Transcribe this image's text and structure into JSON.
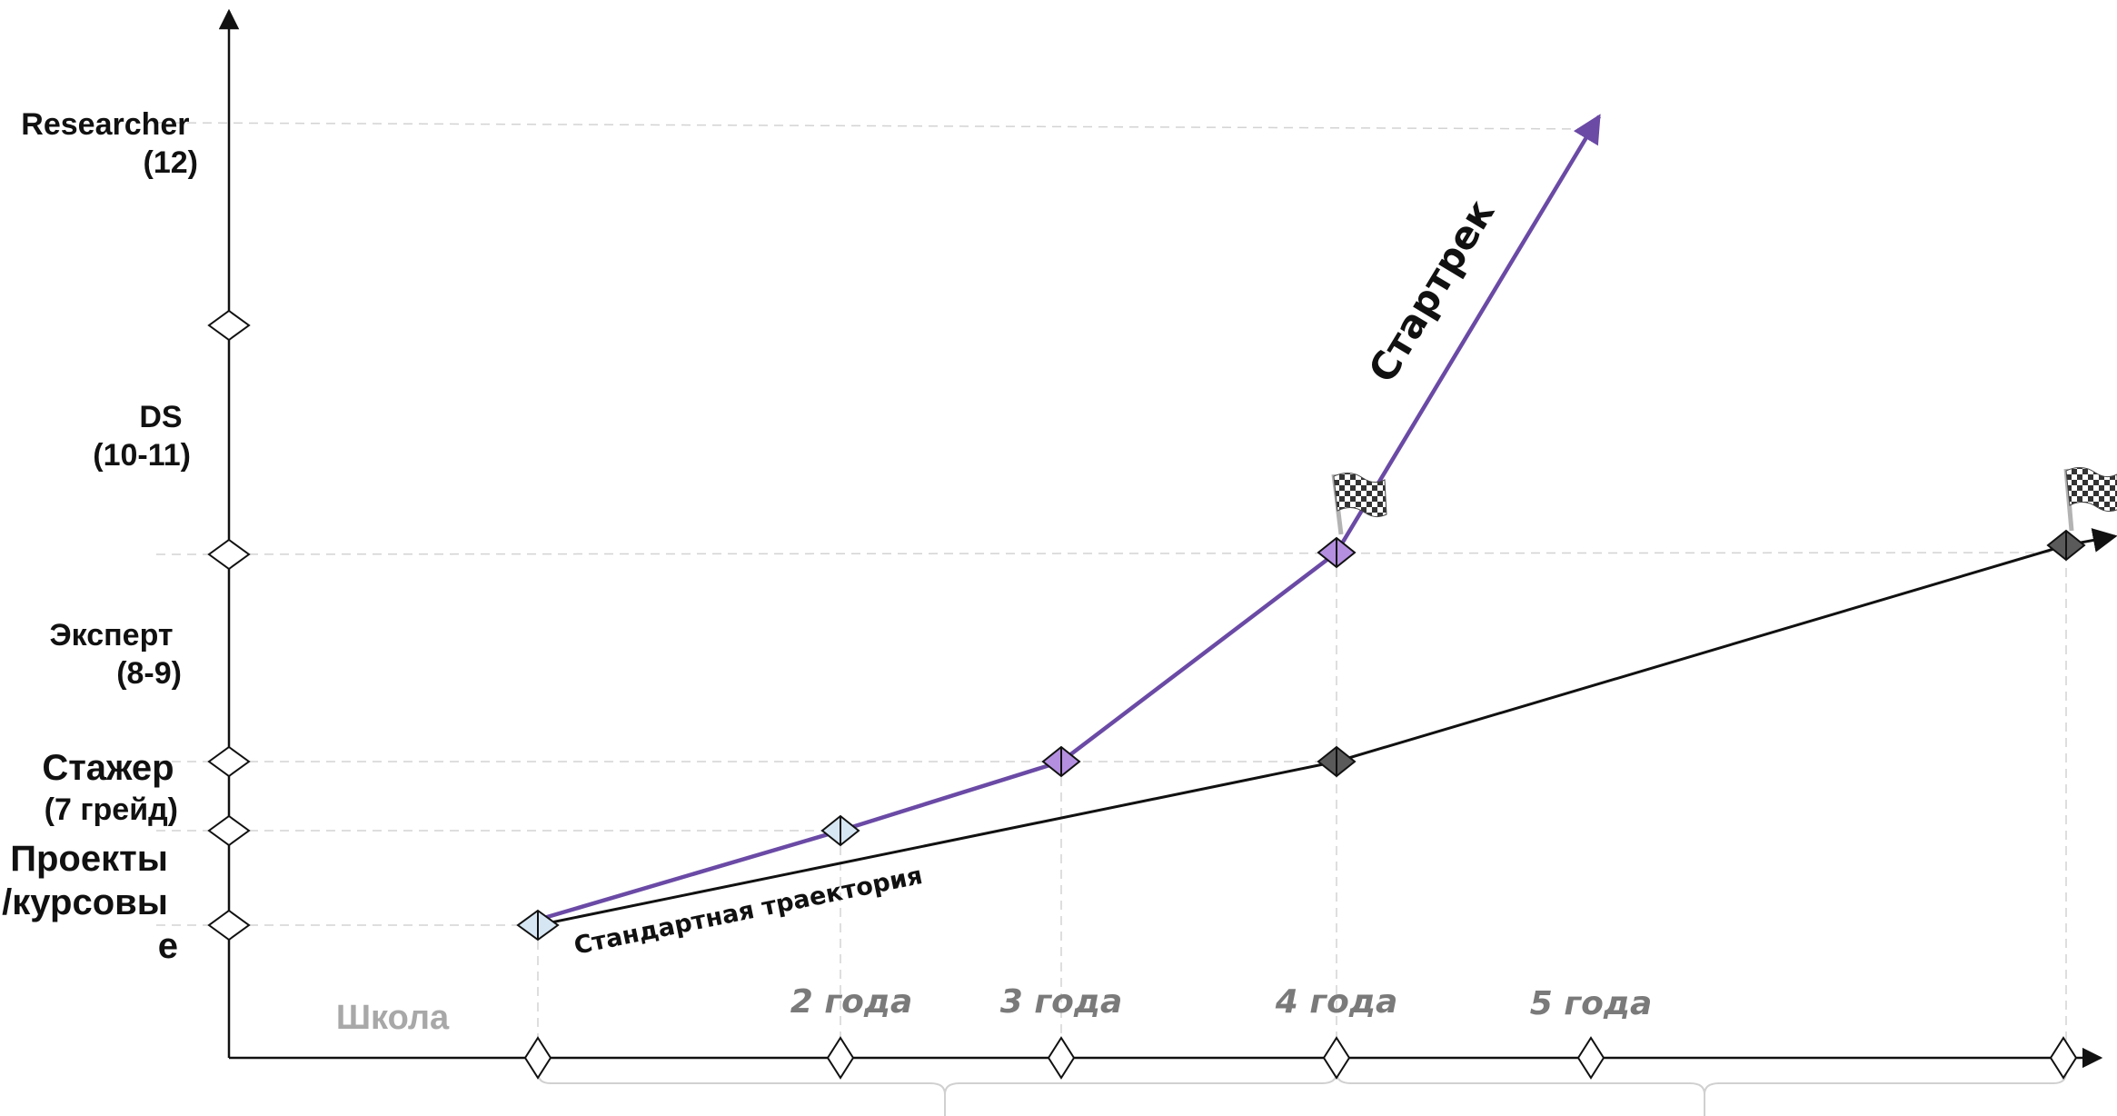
{
  "y_axis_levels": [
    {
      "label_lines": [
        "Researcher",
        "(12)"
      ]
    },
    {
      "label_lines": [
        "DS",
        "(10-11)"
      ]
    },
    {
      "label_lines": [
        "Эксперт",
        "(8-9)"
      ]
    },
    {
      "label_lines": [
        "Стажер",
        "(7 грейд)"
      ]
    },
    {
      "label_lines": [
        "Проекты",
        "/курсовы",
        "е"
      ]
    }
  ],
  "x_axis_labels": {
    "school": "Школа",
    "year2": "2 года",
    "year3": "3 года",
    "year4": "4 года",
    "year5": "5 года"
  },
  "trajectories": {
    "startrek": {
      "label": "Стартрек",
      "color": "#6a4aa5"
    },
    "standard": {
      "label": "Стандартная траектория",
      "color": "#111111"
    }
  },
  "icons": [
    "checkered-flag-icon",
    "diamond-marker-icon"
  ],
  "colors": {
    "grid": "#cfcfcf",
    "axis": "#111111",
    "marker_light_blue": "#d7e6f3",
    "marker_purple": "#b48fe0",
    "marker_dark": "#5a5a5a",
    "x_label": "#7a7a7a",
    "school_label": "#a8a8a8"
  }
}
